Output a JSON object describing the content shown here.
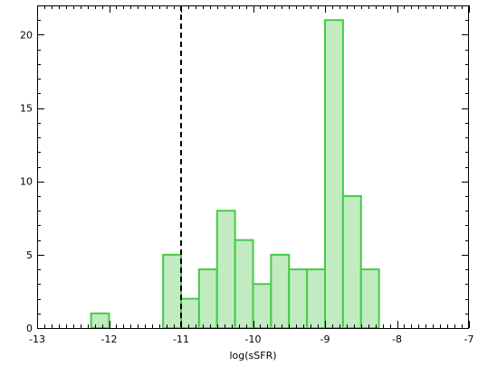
{
  "chart_data": {
    "type": "bar",
    "title": "",
    "xlabel": "log(sSFR)",
    "ylabel": "",
    "xlim": [
      -13,
      -7
    ],
    "ylim": [
      0,
      22
    ],
    "grid": false,
    "legend": "none",
    "bin_width": 0.25,
    "bins": [
      {
        "x0": -12.25,
        "x1": -12.0,
        "count": 1
      },
      {
        "x0": -11.25,
        "x1": -11.0,
        "count": 5
      },
      {
        "x0": -11.0,
        "x1": -10.75,
        "count": 2
      },
      {
        "x0": -10.75,
        "x1": -10.5,
        "count": 4
      },
      {
        "x0": -10.5,
        "x1": -10.25,
        "count": 8
      },
      {
        "x0": -10.25,
        "x1": -10.0,
        "count": 6
      },
      {
        "x0": -10.0,
        "x1": -9.75,
        "count": 3
      },
      {
        "x0": -9.75,
        "x1": -9.5,
        "count": 5
      },
      {
        "x0": -9.5,
        "x1": -9.25,
        "count": 4
      },
      {
        "x0": -9.25,
        "x1": -9.0,
        "count": 4
      },
      {
        "x0": -9.0,
        "x1": -8.75,
        "count": 21
      },
      {
        "x0": -8.75,
        "x1": -8.5,
        "count": 9
      },
      {
        "x0": -8.5,
        "x1": -8.25,
        "count": 4
      }
    ],
    "reference_line": {
      "x": -11,
      "style": "dashed",
      "color": "#000000"
    },
    "x_ticks": [
      -13,
      -12,
      -11,
      -10,
      -9,
      -8,
      -7
    ],
    "y_ticks": [
      0,
      5,
      10,
      15,
      20
    ],
    "colors": {
      "bar_fill": "#c2ebc2",
      "bar_stroke": "#44cc44",
      "axis": "#000000"
    }
  }
}
